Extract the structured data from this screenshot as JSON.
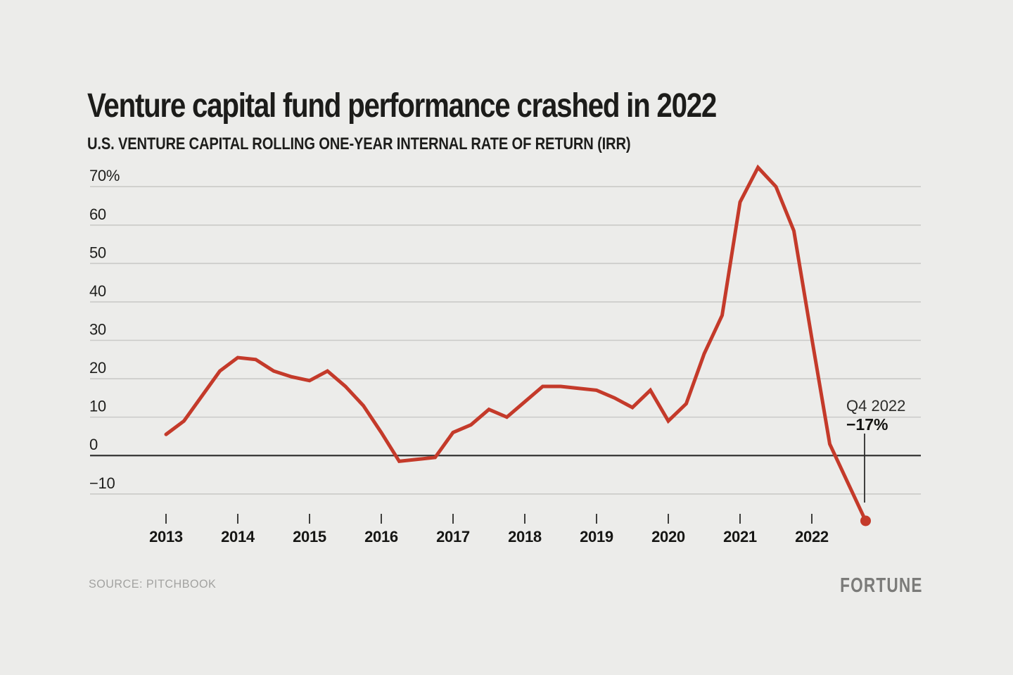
{
  "header": {
    "title": "Venture capital fund performance crashed in 2022",
    "subtitle": "U.S. VENTURE CAPITAL ROLLING ONE-YEAR INTERNAL RATE OF RETURN (IRR)"
  },
  "chart_data": {
    "type": "line",
    "title": "Venture capital fund performance crashed in 2022",
    "subtitle": "U.S. VENTURE CAPITAL ROLLING ONE-YEAR INTERNAL RATE OF RETURN (IRR)",
    "x_quarters": [
      "Q1 2013",
      "Q2 2013",
      "Q3 2013",
      "Q4 2013",
      "Q1 2014",
      "Q2 2014",
      "Q3 2014",
      "Q4 2014",
      "Q1 2015",
      "Q2 2015",
      "Q3 2015",
      "Q4 2015",
      "Q1 2016",
      "Q2 2016",
      "Q3 2016",
      "Q4 2016",
      "Q1 2017",
      "Q2 2017",
      "Q3 2017",
      "Q4 2017",
      "Q1 2018",
      "Q2 2018",
      "Q3 2018",
      "Q4 2018",
      "Q1 2019",
      "Q2 2019",
      "Q3 2019",
      "Q4 2019",
      "Q1 2020",
      "Q2 2020",
      "Q3 2020",
      "Q4 2020",
      "Q1 2021",
      "Q2 2021",
      "Q3 2021",
      "Q4 2021",
      "Q1 2022",
      "Q2 2022",
      "Q3 2022",
      "Q4 2022"
    ],
    "series": [
      {
        "name": "U.S. venture capital rolling one-year IRR (%)",
        "values": [
          5.5,
          9,
          15.5,
          22,
          25.5,
          25,
          22,
          20.5,
          19.5,
          22,
          18,
          13,
          6,
          -1.5,
          -1,
          -0.5,
          6,
          8,
          12,
          10,
          14,
          18,
          18,
          17.5,
          17,
          15,
          12.5,
          17,
          9,
          13.5,
          26.5,
          36.5,
          66,
          75,
          70,
          58.5,
          30.5,
          3,
          -7,
          -17
        ]
      }
    ],
    "x_tick_labels": [
      "2013",
      "2014",
      "2015",
      "2016",
      "2017",
      "2018",
      "2019",
      "2020",
      "2021",
      "2022"
    ],
    "y_tick_labels": [
      "70%",
      "60",
      "50",
      "40",
      "30",
      "20",
      "10",
      "0",
      "−10"
    ],
    "y_tick_values": [
      70,
      60,
      50,
      40,
      30,
      20,
      10,
      0,
      -10
    ],
    "ylim": [
      -20,
      78
    ],
    "grid": true,
    "legend": "none",
    "line_color": "#c43a2a",
    "annotation": {
      "period": "Q4 2022",
      "value_label": "−17%"
    }
  },
  "footer": {
    "source_label": "SOURCE: PITCHBOOK",
    "brand": "FORTUNE"
  }
}
